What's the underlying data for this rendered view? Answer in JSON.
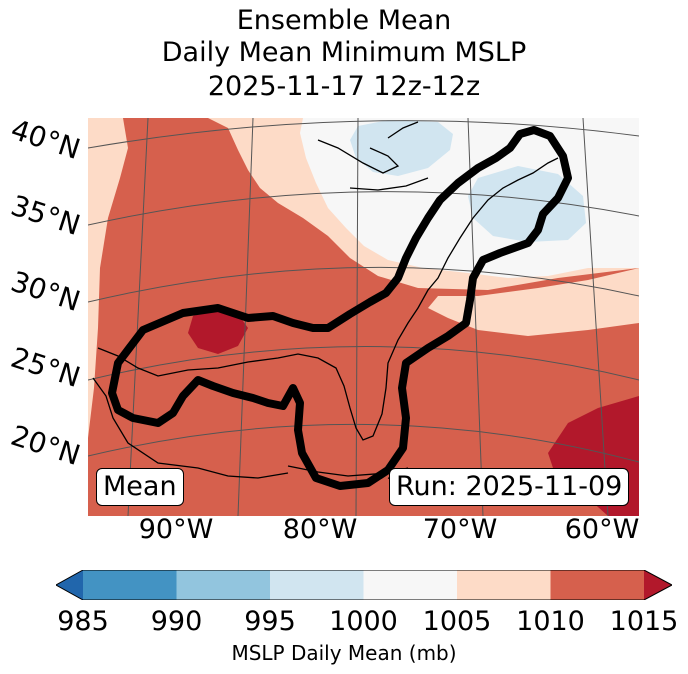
{
  "title": {
    "line1": "Ensemble Mean",
    "line2": "Daily Mean Minimum MSLP",
    "line3": "2025-11-17 12z-12z"
  },
  "map": {
    "lat_labels": [
      "40°N",
      "35°N",
      "30°N",
      "25°N",
      "20°N"
    ],
    "lon_labels": [
      "90°W",
      "80°W",
      "70°W",
      "60°W"
    ],
    "mean_box": "Mean",
    "run_box": "Run: 2025-11-09"
  },
  "colorbar": {
    "ticks": [
      "985",
      "990",
      "995",
      "1000",
      "1005",
      "1010",
      "1015"
    ],
    "label": "MSLP Daily Mean (mb)",
    "colors": [
      "#2166ac",
      "#4393c3",
      "#92c5de",
      "#d1e5f0",
      "#f7f7f7",
      "#fddbc7",
      "#d6604d",
      "#b2182b"
    ]
  }
}
